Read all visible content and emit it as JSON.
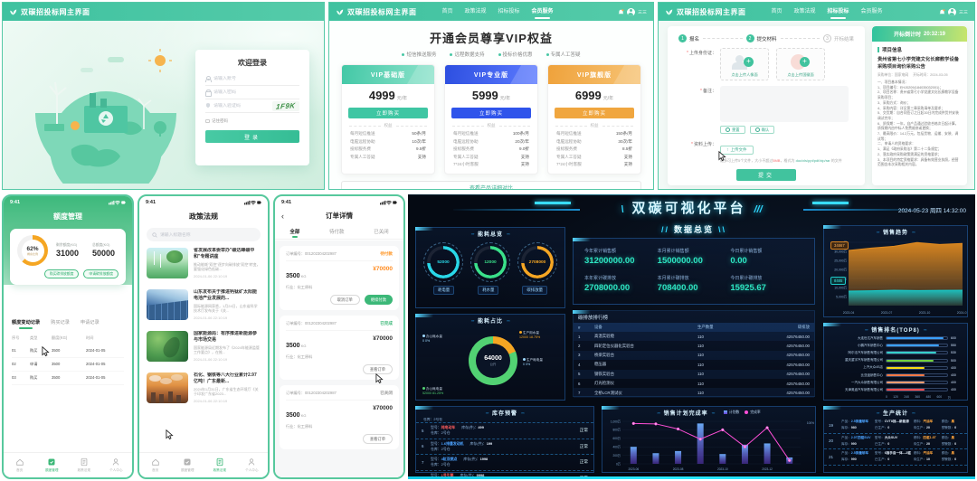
{
  "login": {
    "header_title": "双碳招投标网主界面",
    "welcome_title": "欢迎登录",
    "account_placeholder": "请输入账号",
    "password_placeholder": "请输入密码",
    "captcha_placeholder": "请输入验证码",
    "captcha_text": "1F9K",
    "remember_label": "记住密码",
    "login_button": "登录"
  },
  "vip": {
    "header_title": "双碳招投标网主界面",
    "nav": [
      "首页",
      "政策法规",
      "招标投标",
      "会员服务"
    ],
    "username": "三三",
    "page_title": "开通会员尊享VIP权益",
    "benefits": [
      "短信推送服务",
      "远程数据支持",
      "投标价格优惠",
      "专属人工答疑"
    ],
    "price_unit": "元/年",
    "buy_button": "立即购买",
    "divider_label": "权益",
    "plans": [
      {
        "name": "VIP基础版",
        "price": "4999",
        "h1": "#43c8a6",
        "h2": "#8fe3cc",
        "theme": "#3fc6a3",
        "features": [
          [
            "每月短信推送",
            "50条/月"
          ],
          [
            "电脑远程协助",
            "10次/年"
          ],
          [
            "投标服务费",
            "9.5折"
          ],
          [
            "专属人工答疑",
            "支持"
          ]
        ]
      },
      {
        "name": "VIP专业版",
        "price": "5999",
        "h1": "#2d4fe0",
        "h2": "#5d7bff",
        "theme": "#2f54eb",
        "features": [
          [
            "每月短信推送",
            "100条/月"
          ],
          [
            "电脑远程协助",
            "20次/年"
          ],
          [
            "投标服务费",
            "9.0折"
          ],
          [
            "专属人工答疑",
            "支持"
          ],
          [
            "7*24小时客服",
            "支持"
          ]
        ]
      },
      {
        "name": "VIP旗舰版",
        "price": "6999",
        "h1": "#efa23b",
        "h2": "#f7c476",
        "theme": "#f0a63f",
        "features": [
          [
            "每月短信推送",
            "150条/月"
          ],
          [
            "电脑远程协助",
            "30次/年"
          ],
          [
            "投标服务费",
            "8.5折"
          ],
          [
            "专属人工答疑",
            "支持"
          ],
          [
            "7*24小时客服",
            "支持"
          ]
        ]
      }
    ],
    "compare_link": "查看产品详细对比"
  },
  "bid": {
    "steps": [
      {
        "num": "1",
        "label": "报名",
        "active": true
      },
      {
        "num": "2",
        "label": "提交材料",
        "active": true
      },
      {
        "num": "3",
        "label": "开标结果",
        "active": false
      }
    ],
    "id_label": "上传身份证：",
    "uploads": [
      "点击上传人像面",
      "点击上传国徽面"
    ],
    "remark_label": "备注：",
    "reset_button": "重置",
    "confirm_button": "确认",
    "file_label": "资料上传：",
    "upload_file_button": "上传文件",
    "file_hint_prefix": "最多可上传5个文件，大小不超过",
    "file_hint_size": "5MB",
    "file_hint_mid": "，格式为 ",
    "file_hint_formats": "doc/xls/ppt/pdf/zip/rar",
    "file_hint_suffix": " 的文件",
    "submit_button": "提交",
    "countdown_label": "开标倒计时",
    "countdown_time": "20:32:19",
    "info_section": "项目信息",
    "notice_title": "贵州省第七小学党建文化长廊教学设备采购项目询价采购公告",
    "meta_left": "采购单位：国家电网",
    "meta_right": "开标时间：2024-03-05",
    "body_lines": [
      "一、项目基本情况：",
      "1、项目编号：EHJ0209(184035032001)；",
      "2、项目名称：贵州省第七小学党建文化长廊教学设备采购项目；",
      "3、采购方式：询价；",
      "4、采购内容：详见第三章采购清单及要求；",
      "5、交货期：自合同签订之日起30日内完成供货并安装调试完毕；",
      "6、质保期：一年，自产品通过验收合格次日起计算，质保期内由中标人免费维修或更换；",
      "7、最高限价：14.2万元，包括货物、运输、安装、调试等；",
      "二、申请人的资格要求：",
      "1、满足《政府采购法》第二十二条规定；",
      "2、落实政府采购政策需满足的资格要求；",
      "3、本项目的特定资格要求：具备有效营业执照，经营范围含本次采购相关内容。"
    ]
  },
  "tabbar": [
    "首页",
    "额度管理",
    "政策法规",
    "个人中心"
  ],
  "quota": {
    "status_time": "9:41",
    "title": "额度管理",
    "percent": "62%",
    "percent_caption": "剩余比例",
    "remain_label": "剩余额度(KG)",
    "remain_value": "31000",
    "total_label": "总额度(KG)",
    "total_value": "50000",
    "buy_button": "购买碳排放额度",
    "apply_button": "申请碳排放额度",
    "tabs": [
      "额度变动记录",
      "购买记录",
      "申请记录"
    ],
    "table_headers": [
      "序号",
      "类型",
      "额度(KG)",
      "时间"
    ],
    "rows": [
      [
        "01",
        "购买",
        "3500",
        "2024-01-05"
      ],
      [
        "02",
        "申请",
        "3500",
        "2024-01-05"
      ],
      [
        "03",
        "购买",
        "3500",
        "2024-01-05"
      ]
    ]
  },
  "policy": {
    "status_time": "9:41",
    "title": "政策法规",
    "search_placeholder": "请输入标题名称",
    "items": [
      {
        "thumb": "wind-turbine-landscape-photo",
        "title": "省发展改革委举办\"碳达峰碳中和\"专题讲座",
        "desc": "推动能耗\"双控\"逐步向碳排放\"双控\"转变，要强化绿色低碳...",
        "date": "2024-01-06 22:10:19"
      },
      {
        "thumb": "solar-panel-field-photo",
        "title": "山东发布关于推进钙钛矿太阳能电池产业发展的...",
        "desc": "国际能源网获悉，1月24日，山东省科学技术厅发布关于《关...",
        "date": "2024-01-06 22:10:19"
      },
      {
        "thumb": "green-leaves-photo",
        "title": "国家能源局：有序推进新能源参与市场交易",
        "desc": "国家能源局近期发布了《2024年能源监管工作要点》，在推...",
        "date": "2024-01-06 22:10:19"
      },
      {
        "thumb": "factory-smokestacks-photo",
        "title": "石化、钢铁等八大行业累计2.97亿吨！广东最新...",
        "desc": "2024年1月31日，广东省生态环境厅《关于印发广东省2023...",
        "date": "2024-01-06 22:10:19"
      }
    ]
  },
  "orders": {
    "status_time": "9:41",
    "back_glyph": "‹",
    "title": "订单详情",
    "tabs": [
      "全部",
      "待付款",
      "已关闭"
    ],
    "order_no_label": "订单编号：",
    "cards": [
      {
        "order_no": "001202304202987",
        "status": "待付款",
        "status_color": "#ff9a2e",
        "qty": "3500",
        "qty_unit": "KG",
        "industry": "行业：化工原料",
        "price": "¥70000",
        "price_color": "#ff8c21",
        "buttons": [
          {
            "label": "取消订单",
            "type": "outline"
          },
          {
            "label": "继续付款",
            "type": "primary"
          }
        ]
      },
      {
        "order_no": "001202304202987",
        "status": "已完成",
        "status_color": "#3cb878",
        "qty": "3500",
        "qty_unit": "KG",
        "industry": "行业：化工原料",
        "price": "¥70000",
        "price_color": "#333333",
        "buttons": [
          {
            "label": "查看订单",
            "type": "outline"
          }
        ]
      },
      {
        "order_no": "001202304202987",
        "status": "已关闭",
        "status_color": "#999999",
        "qty": "3500",
        "qty_unit": "KG",
        "industry": "行业：化工原料",
        "price": "¥70000",
        "price_color": "#333333",
        "buttons": [
          {
            "label": "查看订单",
            "type": "outline"
          }
        ]
      }
    ]
  },
  "dash": {
    "title": "双碳可视化平台",
    "deco_title_l": "\\",
    "deco_title_r": "///",
    "datetime": "2024-05-23 周四 14:32:00",
    "overview_title": "数据总览",
    "deco_ov_l": "//",
    "deco_ov_r": "\\\\",
    "deco_l": "››››",
    "deco_r": "‹‹‹‹",
    "energy": {
      "title": "能耗总览",
      "rings": [
        {
          "value": "52000",
          "label": "耗电量",
          "color": "#29d8e8"
        },
        {
          "value": "12000",
          "label": "耗水量",
          "color": "#3ae08a"
        },
        {
          "value": "2708000",
          "label": "碳排放量",
          "color": "#f5a623"
        }
      ]
    },
    "stats": {
      "items": [
        {
          "label": "今年累计销售额",
          "value": "31200000.00"
        },
        {
          "label": "本月累计销售额",
          "value": "1500000.00"
        },
        {
          "label": "今日累计销售额",
          "value": "0.00"
        },
        {
          "label": "本年累计碳排放",
          "value": "2708000.00"
        },
        {
          "label": "本月累计碳排放",
          "value": "708400.00"
        },
        {
          "label": "今日累计碳排放",
          "value": "15925.67"
        }
      ]
    },
    "rank": {
      "title": "碳排放排行榜",
      "headers": [
        "#",
        "设备",
        "生产数量",
        "碳排放"
      ],
      "rows": [
        [
          "1",
          "高温实验舱",
          "110",
          "42576450.00"
        ],
        [
          "2",
          "四轮定位仪器化实验台",
          "110",
          "42576450.00"
        ],
        [
          "3",
          "桥梁实验台",
          "110",
          "42576450.00"
        ],
        [
          "4",
          "稳压器",
          "110",
          "42576450.00"
        ],
        [
          "5",
          "钢铁实验台",
          "110",
          "42576450.00"
        ],
        [
          "6",
          "灯光检测仪",
          "110",
          "42576450.00"
        ],
        [
          "7",
          "全桥LCR测试仪",
          "110",
          "42576450.00"
        ]
      ]
    },
    "trend": {
      "title": "销售趋势",
      "y_max_wan": 35000,
      "y_ticks": [
        "35,000万",
        "30,000万",
        "25,000万",
        "20,000万",
        "15,000万",
        "10,000万",
        "5,000万"
      ],
      "x_ticks": [
        "2023-04",
        "2023-07",
        "2023-10",
        "2024-01"
      ],
      "series": [
        {
          "color": "#e08a1f",
          "label": "34867",
          "values_wan": [
            30500,
            31800,
            32800,
            34867,
            33800,
            34400
          ]
        },
        {
          "color": "#17c9c9",
          "label": "8485",
          "values_wan": [
            8000,
            8200,
            8485,
            8300,
            8450,
            8485
          ]
        }
      ]
    },
    "ratio": {
      "title": "能耗占比",
      "center_value": "64000",
      "center_unit": "公斤",
      "callouts": [
        {
          "name": "办公耗水量",
          "value": "0",
          "pct": "0%",
          "color": "#9fd9ff"
        },
        {
          "name": "生产用水量",
          "value": "12000",
          "pct": "18.75%",
          "color": "#f5a623"
        },
        {
          "name": "生产耗电量",
          "value": "0",
          "pct": "0%",
          "color": "#9fd9ff"
        },
        {
          "name": "办公耗电量",
          "value": "52000",
          "pct": "81.25%",
          "color": "#52d273"
        }
      ]
    },
    "stock": {
      "title": "库存预警",
      "partial_top": "仓库：2号仓",
      "model_label": "型号：",
      "stock_label": "库存(件)：",
      "warehouse_label": "仓库：",
      "rows": [
        {
          "no": "5",
          "model": "纯电动车",
          "model_color": "#ff5d5d",
          "stock": "499",
          "warehouse": "2号仓",
          "status": "正常"
        },
        {
          "no": "6",
          "model": "1.6排量发动机",
          "model_color": "#4da3ff",
          "stock": "199",
          "warehouse": "2号仓",
          "status": "正常"
        },
        {
          "no": "7",
          "model": "4缸双燃点",
          "model_color": "#4da3ff",
          "stock": "1998",
          "warehouse": "2号仓",
          "status": "正常"
        },
        {
          "no": "8",
          "model": "1号引擎",
          "model_color": "#ff5d5d",
          "stock": "9998",
          "warehouse": "2号仓",
          "status": "正常"
        }
      ]
    },
    "plan": {
      "title": "销售计划完成率",
      "legend": [
        "计划数",
        "完成率"
      ],
      "y_ticks": [
        "1,000万",
        "800万",
        "600万",
        "400万",
        "200万",
        "0万"
      ],
      "right_tick": "100%",
      "categories": [
        "2023-06",
        "2023-07",
        "2023-08",
        "2023-09",
        "2023-10",
        "2023-11",
        "2023-12",
        "2024-01"
      ],
      "bars_wan": [
        400,
        250,
        300,
        950,
        230,
        450,
        480,
        150
      ],
      "line_pct": [
        95,
        94,
        82,
        58,
        80,
        40,
        85,
        8
      ]
    },
    "sales_rank": {
      "title": "销售排名(TOP8)",
      "axis": [
        "0",
        "120",
        "240",
        "360",
        "480",
        "600"
      ],
      "axis_unit": "万",
      "items": [
        {
          "name": "大连世达汽车销售",
          "value": 600,
          "color": "#3aa0ff"
        },
        {
          "name": "小鹏汽车销售中心",
          "value": 550,
          "color": "#3aa0ff"
        },
        {
          "name": "阿尔法汽车销售有限公司",
          "value": 530,
          "color": "#36cfc9"
        },
        {
          "name": "重庆重宇汽车销售有限公司",
          "value": 500,
          "color": "#73d13d"
        },
        {
          "name": "上汽大众4S店",
          "value": 400,
          "color": "#fadb14"
        },
        {
          "name": "比亚迪销售中心",
          "value": 400,
          "color": "#ff7a45"
        },
        {
          "name": "一汽大众销售有限公司",
          "value": 400,
          "color": "#ff9c6e"
        },
        {
          "name": "天津奥迪汽车销售有限公司",
          "value": 400,
          "color": "#ff4d4f"
        }
      ]
    },
    "prod": {
      "title": "生产统计",
      "labels": {
        "product": "产品：",
        "model": "型号：",
        "fuel": "燃料：",
        "color": "颜色：",
        "stock": "库存：",
        "produced": "已生产：",
        "pending": "待生产：",
        "warn": "预警数："
      },
      "rows": [
        {
          "no": "19",
          "product": "2.5排量轿车",
          "model": "CVT8挡—新能源",
          "fuel": "汽油车",
          "color": "黑",
          "stock": "980",
          "produced": "0",
          "pending": "20",
          "warn": "0"
        },
        {
          "no": "20",
          "product": "2.0T四驱SUV",
          "model": "大众SUV",
          "fuel": "四驱1.8T",
          "color": "黑",
          "stock": "990",
          "produced": "0",
          "pending": "20",
          "warn": "0"
        },
        {
          "no": "21",
          "product": "2.5排量轿车",
          "model": "6挡手自一体—2驱",
          "fuel": "汽油车",
          "color": "黑",
          "stock": "990",
          "produced": "0",
          "pending": "10",
          "warn": "0"
        }
      ]
    }
  }
}
